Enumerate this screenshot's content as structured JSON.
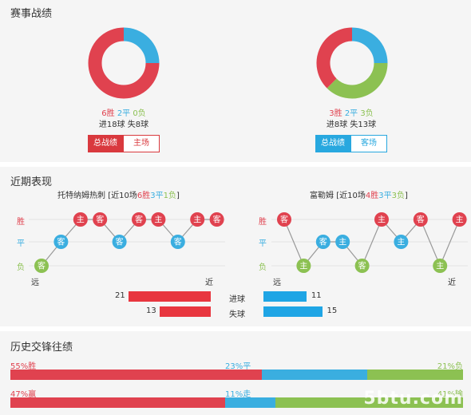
{
  "sections": {
    "record_title": "赛事战绩",
    "recent_title": "近期表现",
    "h2h_title": "历史交锋往绩"
  },
  "home_record": {
    "win": "6胜",
    "draw": "2平",
    "lose": "0负",
    "goals": "进18球",
    "conceded": "失8球",
    "btn_total": "总战绩",
    "btn_venue": "主场",
    "colors": {
      "win": "#e0424f",
      "draw": "#3aaee0"
    }
  },
  "away_record": {
    "win": "3胜",
    "draw": "2平",
    "lose": "3负",
    "goals": "进8球",
    "conceded": "失13球",
    "btn_total": "总战绩",
    "btn_venue": "客场",
    "colors": {
      "win": "#e0424f",
      "draw": "#3aaee0",
      "lose": "#8cc152"
    }
  },
  "recent": {
    "home_team": "托特纳姆热刺",
    "home_summary_pre": "[近10场",
    "home_win": "6胜",
    "home_draw": "3平",
    "home_lose": "1负",
    "home_summary_post": "]",
    "away_team": "富勒姆",
    "away_summary_pre": "[近10场",
    "away_win": "4胜",
    "away_draw": "3平",
    "away_lose": "3负",
    "away_summary_post": "]",
    "labels": {
      "win": "胜",
      "draw": "平",
      "lose": "负",
      "far": "远",
      "near": "近"
    },
    "home_matches": [
      {
        "result": "lose",
        "venue": "客"
      },
      {
        "result": "draw",
        "venue": "客"
      },
      {
        "result": "win",
        "venue": "主"
      },
      {
        "result": "win",
        "venue": "客"
      },
      {
        "result": "draw",
        "venue": "客"
      },
      {
        "result": "win",
        "venue": "客"
      },
      {
        "result": "win",
        "venue": "主"
      },
      {
        "result": "draw",
        "venue": "客"
      },
      {
        "result": "win",
        "venue": "主"
      },
      {
        "result": "win",
        "venue": "客"
      }
    ],
    "away_matches": [
      {
        "result": "win",
        "venue": "客"
      },
      {
        "result": "lose",
        "venue": "主"
      },
      {
        "result": "draw",
        "venue": "客"
      },
      {
        "result": "draw",
        "venue": "主"
      },
      {
        "result": "lose",
        "venue": "客"
      },
      {
        "result": "win",
        "venue": "主"
      },
      {
        "result": "draw",
        "venue": "主"
      },
      {
        "result": "win",
        "venue": "客"
      },
      {
        "result": "lose",
        "venue": "主"
      },
      {
        "result": "win",
        "venue": "主"
      }
    ],
    "goals_label": "进球",
    "conceded_label": "失球",
    "home_goals": 21,
    "home_conceded": 13,
    "away_goals": 11,
    "away_conceded": 15
  },
  "h2h": {
    "row1": {
      "left": "55%胜",
      "mid": "23%平",
      "right": "21%负",
      "values": [
        55,
        23,
        21
      ]
    },
    "row2": {
      "left": "47%赢",
      "mid": "11%走",
      "right": "41%输",
      "values": [
        47,
        11,
        41
      ]
    }
  },
  "watermark": "5btu.com"
}
